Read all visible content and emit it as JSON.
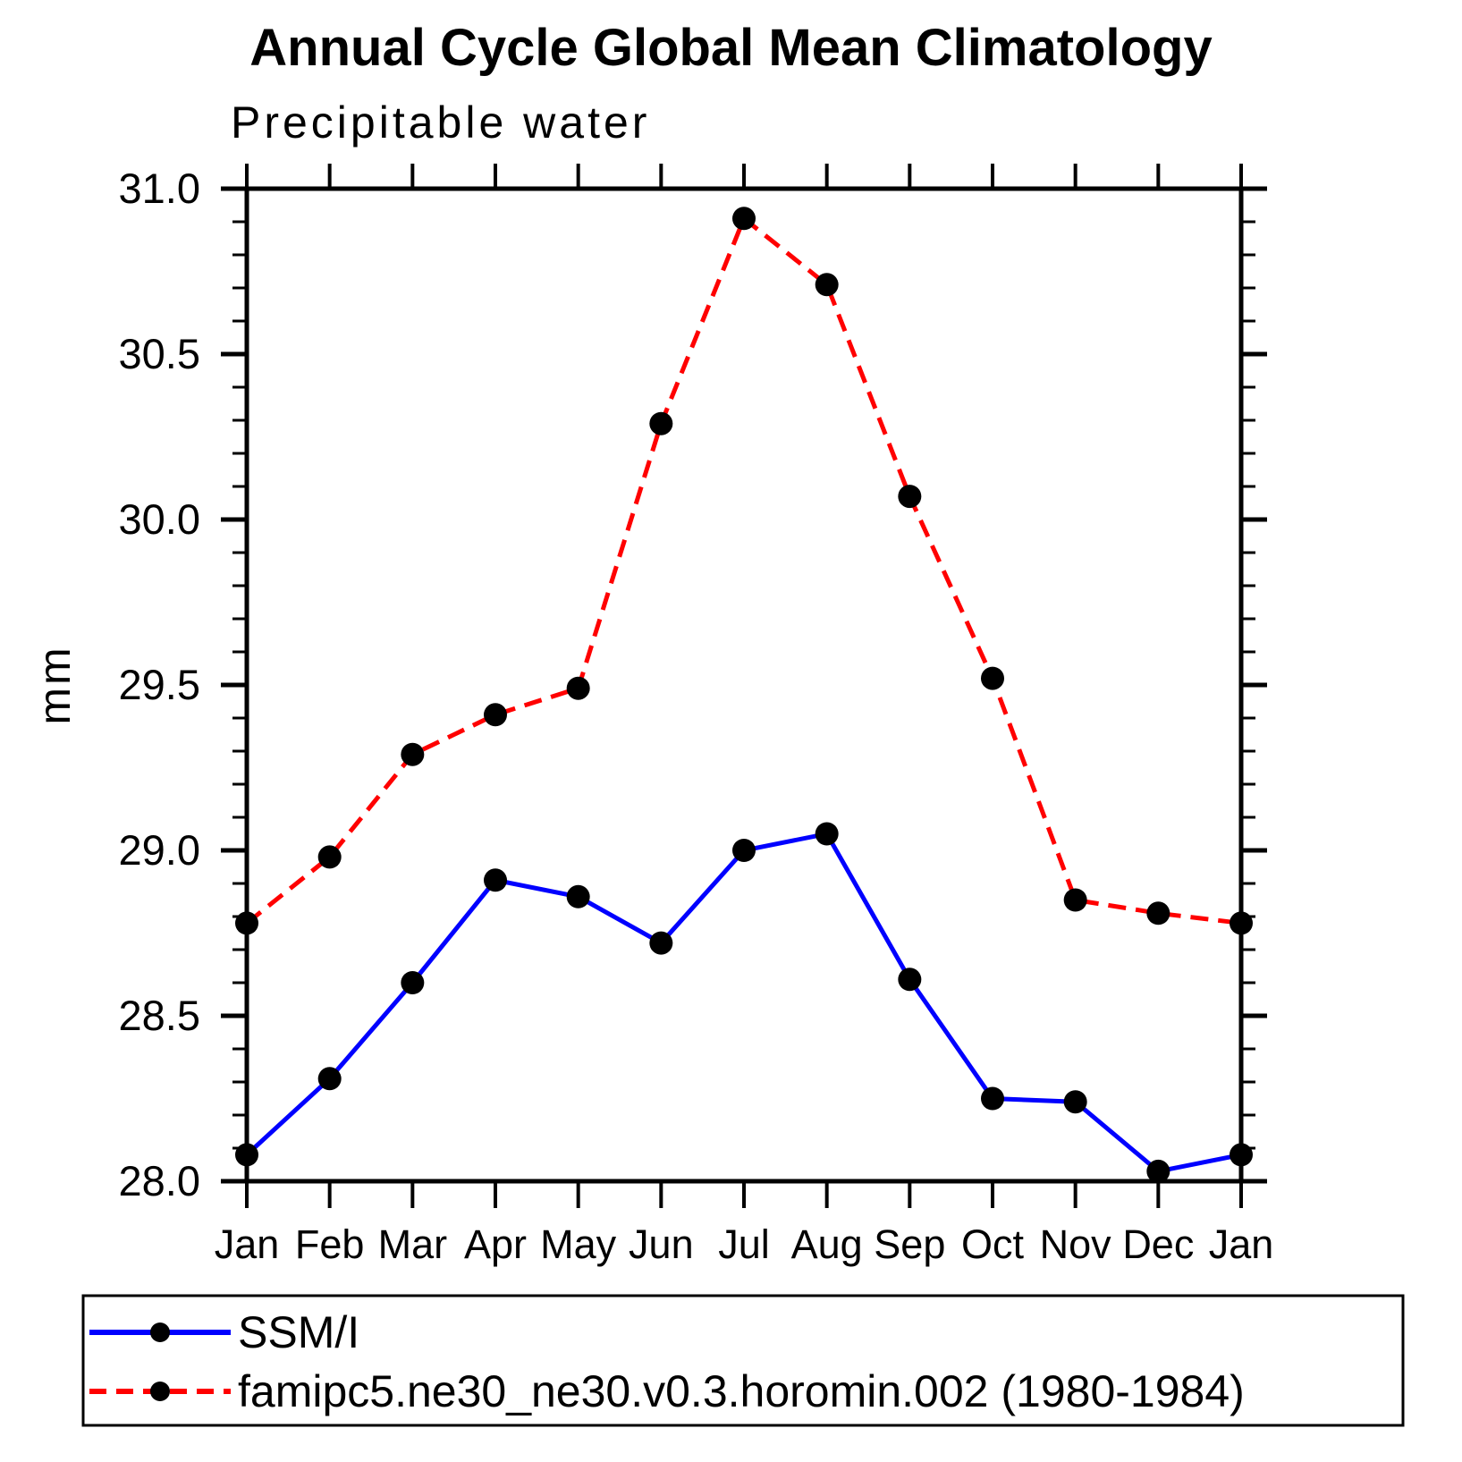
{
  "title": "Annual Cycle Global Mean Climatology",
  "subtitle": "Precipitable water",
  "chart_data": {
    "type": "line",
    "title": "Annual Cycle Global Mean Climatology",
    "subtitle": "Precipitable water",
    "xlabel": "",
    "ylabel": "mm",
    "categories": [
      "Jan",
      "Feb",
      "Mar",
      "Apr",
      "May",
      "Jun",
      "Jul",
      "Aug",
      "Sep",
      "Oct",
      "Nov",
      "Dec",
      "Jan"
    ],
    "ylim": [
      28.0,
      31.0
    ],
    "ytick_labels": [
      "28.0",
      "28.5",
      "29.0",
      "29.5",
      "30.0",
      "30.5",
      "31.0"
    ],
    "ytick_major_interval": 0.5,
    "ytick_minor_interval": 0.1,
    "grid": false,
    "legend_position": "bottom-left-box",
    "axis_color": "#000000",
    "marker_color": "#000000",
    "series": [
      {
        "name": "SSM/I",
        "color": "#0000FF",
        "style": "solid",
        "marker": "circle",
        "values": [
          28.08,
          28.31,
          28.6,
          28.91,
          28.86,
          28.72,
          29.0,
          29.05,
          28.61,
          28.25,
          28.24,
          28.03,
          28.08
        ]
      },
      {
        "name": "famipc5.ne30_ne30.v0.3.horomin.002 (1980-1984)",
        "color": "#FF0000",
        "style": "dashed",
        "marker": "circle",
        "values": [
          28.78,
          28.98,
          29.29,
          29.41,
          29.49,
          30.29,
          30.91,
          30.71,
          30.07,
          29.52,
          28.85,
          28.81,
          28.78
        ]
      }
    ]
  }
}
